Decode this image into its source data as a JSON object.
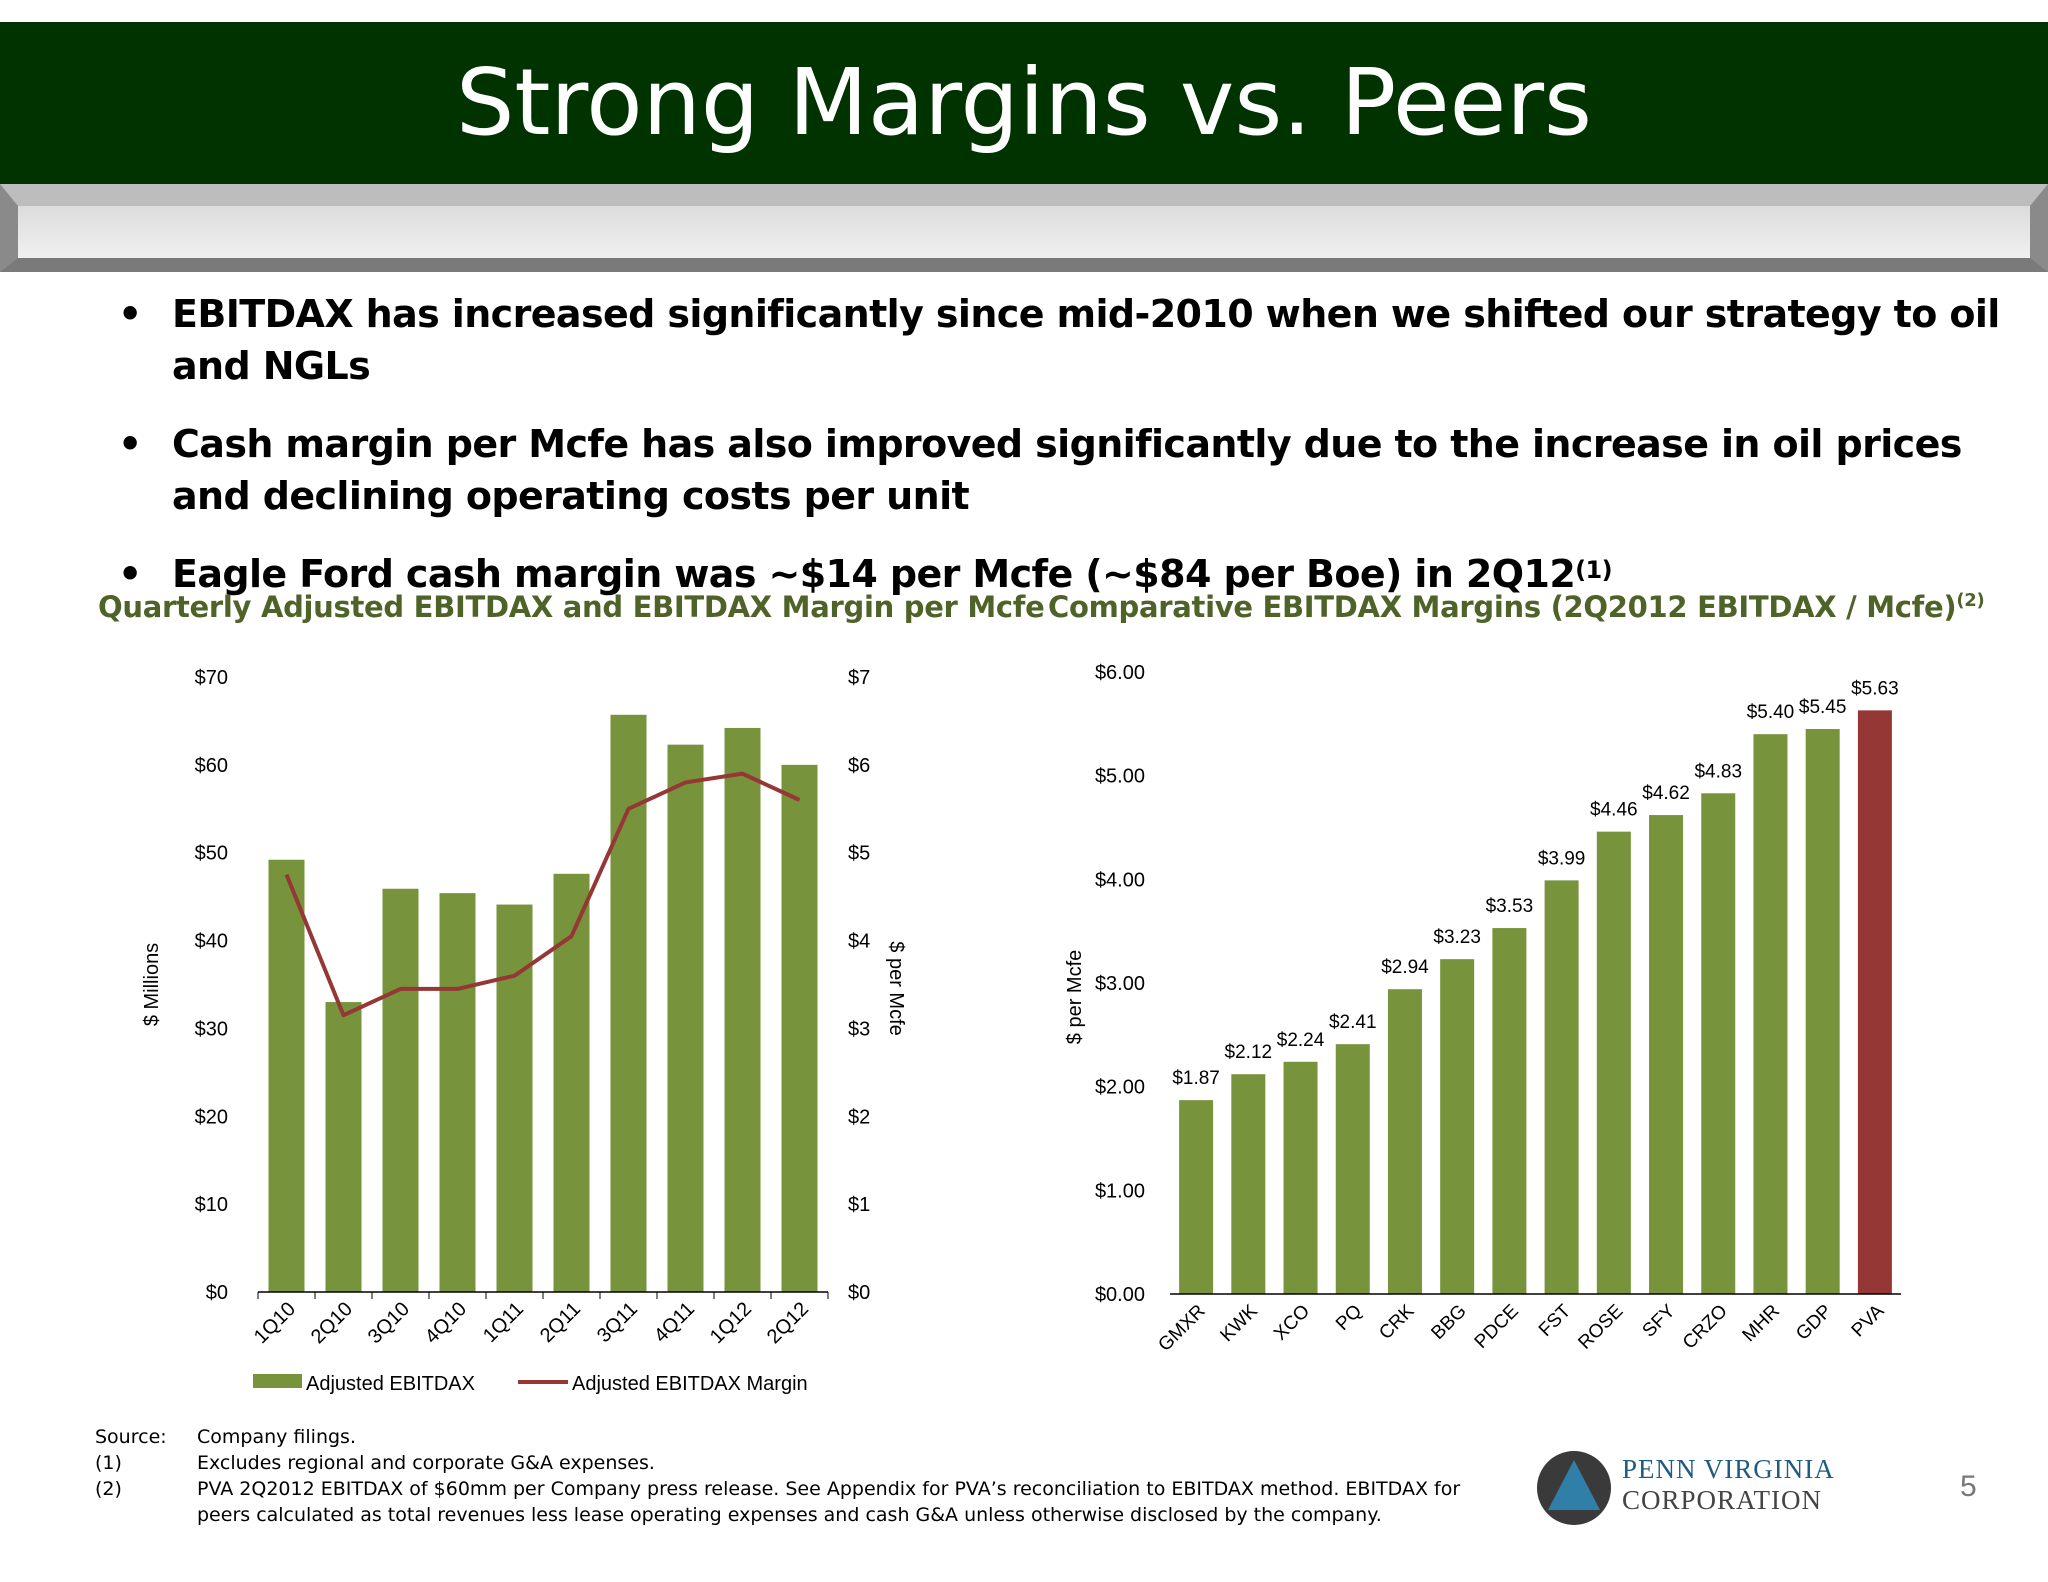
{
  "slide": {
    "title": "Strong Margins vs. Peers",
    "page_number": "5"
  },
  "bullets": [
    {
      "text": "EBITDAX has increased significantly since mid-2010 when we shifted our strategy to oil and NGLs",
      "sup": ""
    },
    {
      "text": "Cash margin per Mcfe has also improved significantly due to the increase in oil prices and declining operating costs per unit",
      "sup": ""
    },
    {
      "text": "Eagle Ford cash margin was ~$14 per Mcfe (~$84 per Boe) in 2Q12",
      "sup": "(1)"
    }
  ],
  "colors": {
    "title_bar": "#003300",
    "bar_green": "#77933c",
    "line_red": "#953735",
    "highlight_bar": "#953735",
    "chart_title": "#4f6228"
  },
  "chart_data": [
    {
      "type": "bar",
      "title": "Quarterly Adjusted EBITDAX and EBITDAX Margin per Mcfe",
      "categories": [
        "1Q10",
        "2Q10",
        "3Q10",
        "4Q10",
        "1Q11",
        "2Q11",
        "3Q11",
        "4Q11",
        "1Q12",
        "2Q12"
      ],
      "series": [
        {
          "name": "Adjusted EBITDAX",
          "type": "bar",
          "axis": "left",
          "values": [
            49.2,
            33,
            45.9,
            45.4,
            44.1,
            47.6,
            65.7,
            62.3,
            64.2,
            60
          ]
        },
        {
          "name": "Adjusted EBITDAX Margin",
          "type": "line",
          "axis": "right",
          "values": [
            4.75,
            3.15,
            3.45,
            3.45,
            3.6,
            4.05,
            5.5,
            5.8,
            5.9,
            5.6
          ]
        }
      ],
      "ylabel": "$ Millions",
      "y2label": "$ per Mcfe",
      "ylim": [
        0,
        70
      ],
      "y2lim": [
        0,
        7
      ],
      "yticks": [
        "$0",
        "$10",
        "$20",
        "$30",
        "$40",
        "$50",
        "$60",
        "$70"
      ],
      "y2ticks": [
        "$0",
        "$1",
        "$2",
        "$3",
        "$4",
        "$5",
        "$6",
        "$7"
      ],
      "legend": "bottom",
      "grid": false
    },
    {
      "type": "bar",
      "title": "Comparative EBITDAX Margins (2Q2012 EBITDAX / Mcfe)",
      "title_sup": "(2)",
      "categories": [
        "GMXR",
        "KWK",
        "XCO",
        "PQ",
        "CRK",
        "BBG",
        "PDCE",
        "FST",
        "ROSE",
        "SFY",
        "CRZO",
        "MHR",
        "GDP",
        "PVA"
      ],
      "values": [
        1.87,
        2.12,
        2.24,
        2.41,
        2.94,
        3.23,
        3.53,
        3.99,
        4.46,
        4.62,
        4.83,
        5.4,
        5.45,
        5.63
      ],
      "data_labels": [
        "$1.87",
        "$2.12",
        "$2.24",
        "$2.41",
        "$2.94",
        "$3.23",
        "$3.53",
        "$3.99",
        "$4.46",
        "$4.62",
        "$4.83",
        "$5.40",
        "$5.45",
        "$5.63"
      ],
      "highlight": "PVA",
      "ylabel": "$ per Mcfe",
      "ylim": [
        0,
        6
      ],
      "yticks": [
        "$0.00",
        "$1.00",
        "$2.00",
        "$3.00",
        "$4.00",
        "$5.00",
        "$6.00"
      ],
      "grid": false
    }
  ],
  "footnotes": [
    {
      "key": "Source:",
      "text": "Company filings."
    },
    {
      "key": "(1)",
      "text": "Excludes regional and corporate G&A expenses."
    },
    {
      "key": "(2)",
      "text": "PVA 2Q2012 EBITDAX of $60mm per Company press release. See Appendix for PVA’s reconciliation to EBITDAX method. EBITDAX for peers calculated as total revenues less lease operating expenses and cash G&A unless otherwise disclosed by the company."
    }
  ],
  "logo": {
    "line1": "PENN VIRGINIA",
    "line2": "CORPORATION"
  }
}
